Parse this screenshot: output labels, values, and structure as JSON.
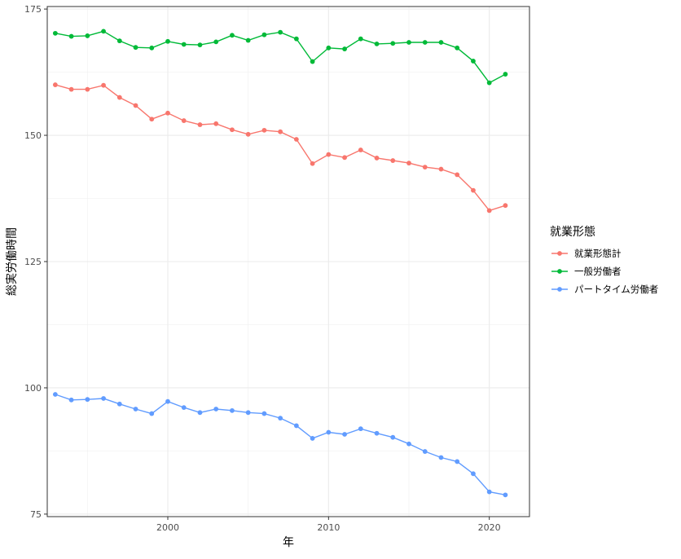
{
  "chart_data": {
    "type": "line",
    "title": "",
    "xlabel": "年",
    "ylabel": "総実労働時間",
    "xlim": [
      1992.5,
      2022.5
    ],
    "ylim": [
      74.5,
      175.5
    ],
    "x_ticks": [
      2000,
      2010,
      2020
    ],
    "y_ticks": [
      75,
      100,
      125,
      150,
      175
    ],
    "grid": true,
    "legend": {
      "title": "就業形態",
      "placement": "right"
    },
    "x": [
      1993,
      1994,
      1995,
      1996,
      1997,
      1998,
      1999,
      2000,
      2001,
      2002,
      2003,
      2004,
      2005,
      2006,
      2007,
      2008,
      2009,
      2010,
      2011,
      2012,
      2013,
      2014,
      2015,
      2016,
      2017,
      2018,
      2019,
      2020,
      2021
    ],
    "series": [
      {
        "name": "就業形態計",
        "color": "#F8766D",
        "values": [
          160.0,
          159.1,
          159.1,
          159.9,
          157.5,
          155.9,
          153.2,
          154.4,
          152.9,
          152.1,
          152.3,
          151.1,
          150.2,
          151.0,
          150.7,
          149.2,
          144.4,
          146.2,
          145.6,
          147.1,
          145.5,
          145.0,
          144.5,
          143.7,
          143.3,
          142.2,
          139.1,
          135.1,
          136.1
        ]
      },
      {
        "name": "一般労働者",
        "color": "#00BA38",
        "values": [
          170.2,
          169.6,
          169.7,
          170.6,
          168.7,
          167.4,
          167.3,
          168.6,
          168.0,
          167.9,
          168.5,
          169.8,
          168.8,
          169.9,
          170.4,
          169.1,
          164.6,
          167.3,
          167.1,
          169.1,
          168.1,
          168.2,
          168.4,
          168.4,
          168.4,
          167.3,
          164.7,
          160.4,
          162.1
        ]
      },
      {
        "name": "パートタイム労働者",
        "color": "#619CFF",
        "values": [
          98.7,
          97.6,
          97.7,
          97.9,
          96.8,
          95.8,
          94.9,
          97.3,
          96.1,
          95.1,
          95.8,
          95.5,
          95.1,
          94.9,
          94.0,
          92.5,
          90.0,
          91.2,
          90.8,
          91.9,
          91.0,
          90.2,
          88.9,
          87.4,
          86.2,
          85.4,
          83.0,
          79.4,
          78.8
        ]
      }
    ]
  }
}
